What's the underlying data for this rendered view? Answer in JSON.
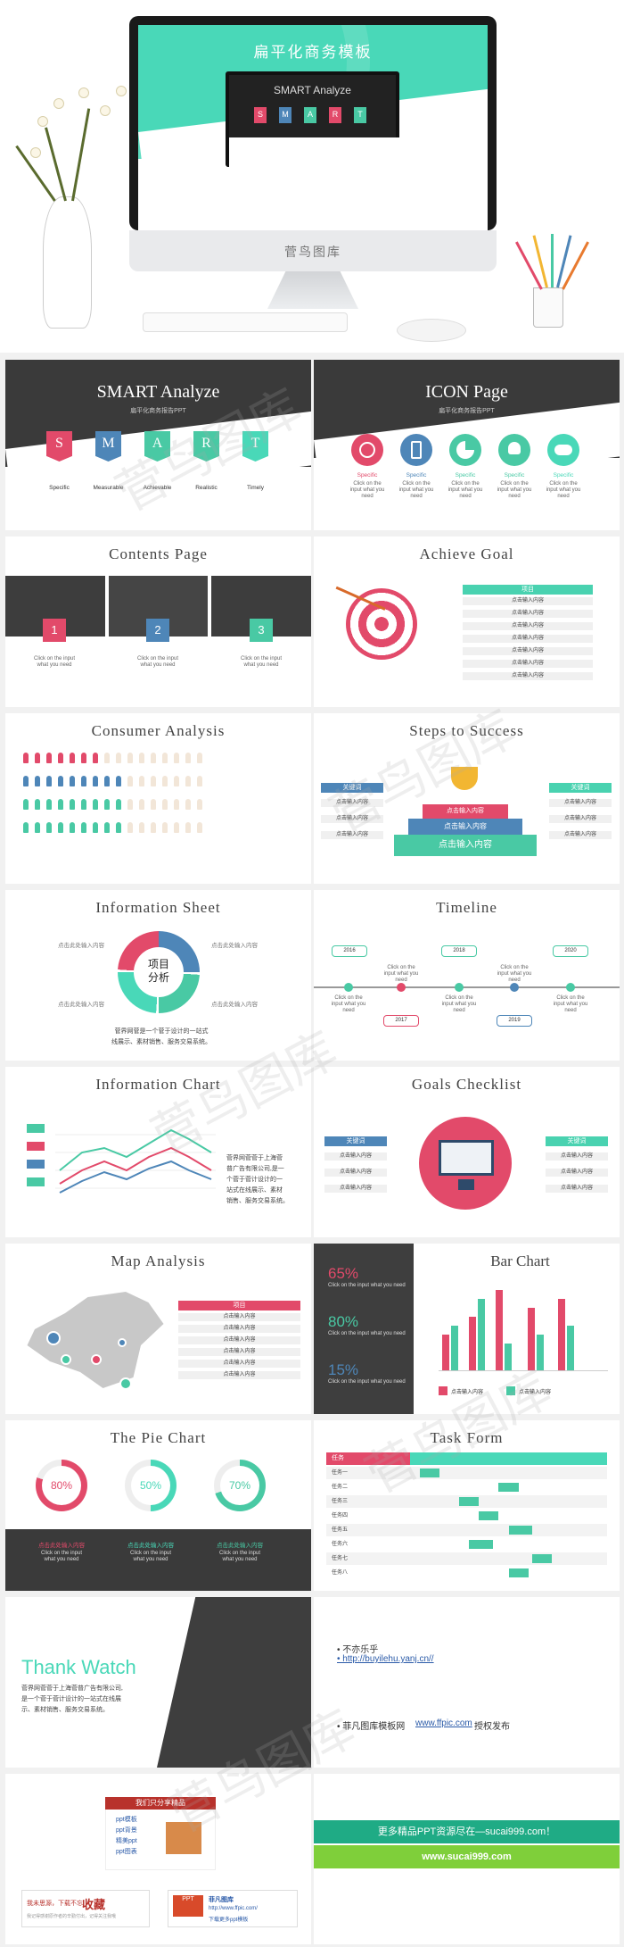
{
  "colors": {
    "mint": "#49d8b8",
    "red": "#e24a6a",
    "blue": "#4e86b8",
    "dark": "#3a3a3a"
  },
  "hero": {
    "title": "扁平化商务模板",
    "screen_title": "SMART Analyze",
    "brand": "菅鸟图库",
    "letters": [
      "S",
      "M",
      "A",
      "R",
      "T"
    ]
  },
  "watermark": "菅鸟图库",
  "smart": {
    "title": "SMART Analyze",
    "subtitle": "扁平化商务报告PPT",
    "letters": [
      "S",
      "M",
      "A",
      "R",
      "T"
    ],
    "labels": [
      "Specific",
      "Measurable",
      "Achievable",
      "Realistic",
      "Timely"
    ]
  },
  "icons": {
    "title": "ICON Page",
    "subtitle": "扁平化商务报告PPT",
    "label": "Specific",
    "desc": "Click on the input what you need",
    "names": [
      "clock-icon",
      "phone-icon",
      "pie-icon",
      "users-icon",
      "gamepad-icon"
    ]
  },
  "contents": {
    "title": "Contents Page",
    "nums": [
      "1",
      "2",
      "3"
    ],
    "desc": "Click on the input what you need"
  },
  "achieve": {
    "title": "Achieve Goal",
    "header": "项目",
    "cell": "点击输入内容"
  },
  "consumer": {
    "title": "Consumer Analysis"
  },
  "steps": {
    "title": "Steps to Success",
    "key": "关键词",
    "cell": "点击输入内容",
    "step": "点击输入内容"
  },
  "info_sheet": {
    "title": "Information Sheet",
    "center": "项目\n分析",
    "label": "点击此处输入内容",
    "para": "菅界网菅是一个菅于设计的一站式\n线展示、素材销售、服务交易系统。"
  },
  "timeline": {
    "title": "Timeline",
    "years": [
      "2016",
      "2017",
      "2018",
      "2019",
      "2020"
    ],
    "desc": "Click on the input what you need"
  },
  "info_chart": {
    "title": "Information Chart",
    "para": "菅界网菅菅于上海菅\n普广告有限公司,是一\n个菅于菅计设计的一\n站式在线展示、素材\n销售、服务交易系统。"
  },
  "goals": {
    "title": "Goals Checklist",
    "key": "关键词",
    "cell": "点击输入内容"
  },
  "map": {
    "title": "Map Analysis",
    "header": "项目",
    "cell": "点击输入内容"
  },
  "bar": {
    "title": "Bar Chart",
    "stats": [
      "65%",
      "80%",
      "15%"
    ],
    "stat_desc": "Click on the input what you need",
    "legend": "点击输入内容"
  },
  "pie": {
    "title": "The Pie Chart",
    "values": [
      "80%",
      "50%",
      "70%"
    ],
    "label": "点击此处输入内容",
    "desc": "Click on the input what you need"
  },
  "task": {
    "title": "Task Form",
    "header": "任务",
    "rows": [
      "任务一",
      "任务二",
      "任务三",
      "任务四",
      "任务五",
      "任务六",
      "任务七",
      "任务八"
    ]
  },
  "thanks": {
    "title": "Thank Watch",
    "para": "菅界网菅菅于上海菅普广告有限公司,\n是一个菅于菅计设计的一站式在线展\n示、素材销售、服务交易系统。"
  },
  "credits": {
    "bullet1": "• 不亦乐乎",
    "link": "• http://buyilehu.yanj.cn//",
    "bullet2": "• 菲凡图库模板网",
    "site": "www.ffpic.com",
    "auth": "授权发布"
  },
  "promo": {
    "header": "我们只分享精品",
    "items": [
      "ppt模板",
      "ppt背景",
      "精美ppt",
      "ppt图表"
    ],
    "fav": "收藏",
    "fav_pre": "我未思源，下载不忘",
    "fav_sub": "我记得感谢原作者的辛勤付出，记得关注我哦",
    "logo_name": "菲凡图库",
    "logo_url": "http://www.ffpic.com/",
    "logo_sub": "下载更多ppt模板",
    "ppt": "PPT"
  },
  "sucai": {
    "line1": "更多精品PPT资源尽在—sucai999.com！",
    "line2": "www.sucai999.com"
  }
}
